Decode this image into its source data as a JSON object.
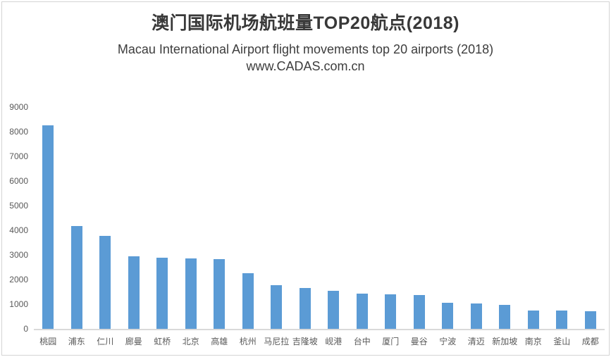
{
  "header": {
    "title": "澳门国际机场航班量TOP20航点(2018)",
    "subtitle": "Macau International Airport  flight movements top 20 airports (2018)",
    "watermark": "www.CADAS.com.cn"
  },
  "chart_data": {
    "type": "bar",
    "title": "澳门国际机场航班量TOP20航点(2018)",
    "subtitle": "Macau International Airport  flight movements top 20 airports (2018)",
    "watermark": "www.CADAS.com.cn",
    "categories": [
      "桃园",
      "浦东",
      "仁川",
      "廊曼",
      "虹桥",
      "北京",
      "高雄",
      "杭州",
      "马尼拉",
      "吉隆坡",
      "岘港",
      "台中",
      "厦门",
      "曼谷",
      "宁波",
      "清迈",
      "新加坡",
      "南京",
      "釜山",
      "成都"
    ],
    "values": [
      8250,
      4160,
      3760,
      2950,
      2890,
      2860,
      2820,
      2250,
      1760,
      1670,
      1530,
      1430,
      1390,
      1380,
      1050,
      1020,
      960,
      740,
      730,
      720
    ],
    "xlabel": "",
    "ylabel": "",
    "ylim": [
      0,
      9000
    ],
    "yticks": [
      0,
      1000,
      2000,
      3000,
      4000,
      5000,
      6000,
      7000,
      8000,
      9000
    ],
    "grid": false,
    "legend_position": "none",
    "colors": {
      "bar": "#5B9BD5",
      "axis_line": "#D9D9D9",
      "tick_label": "#595959",
      "title_text": "#383838"
    }
  }
}
